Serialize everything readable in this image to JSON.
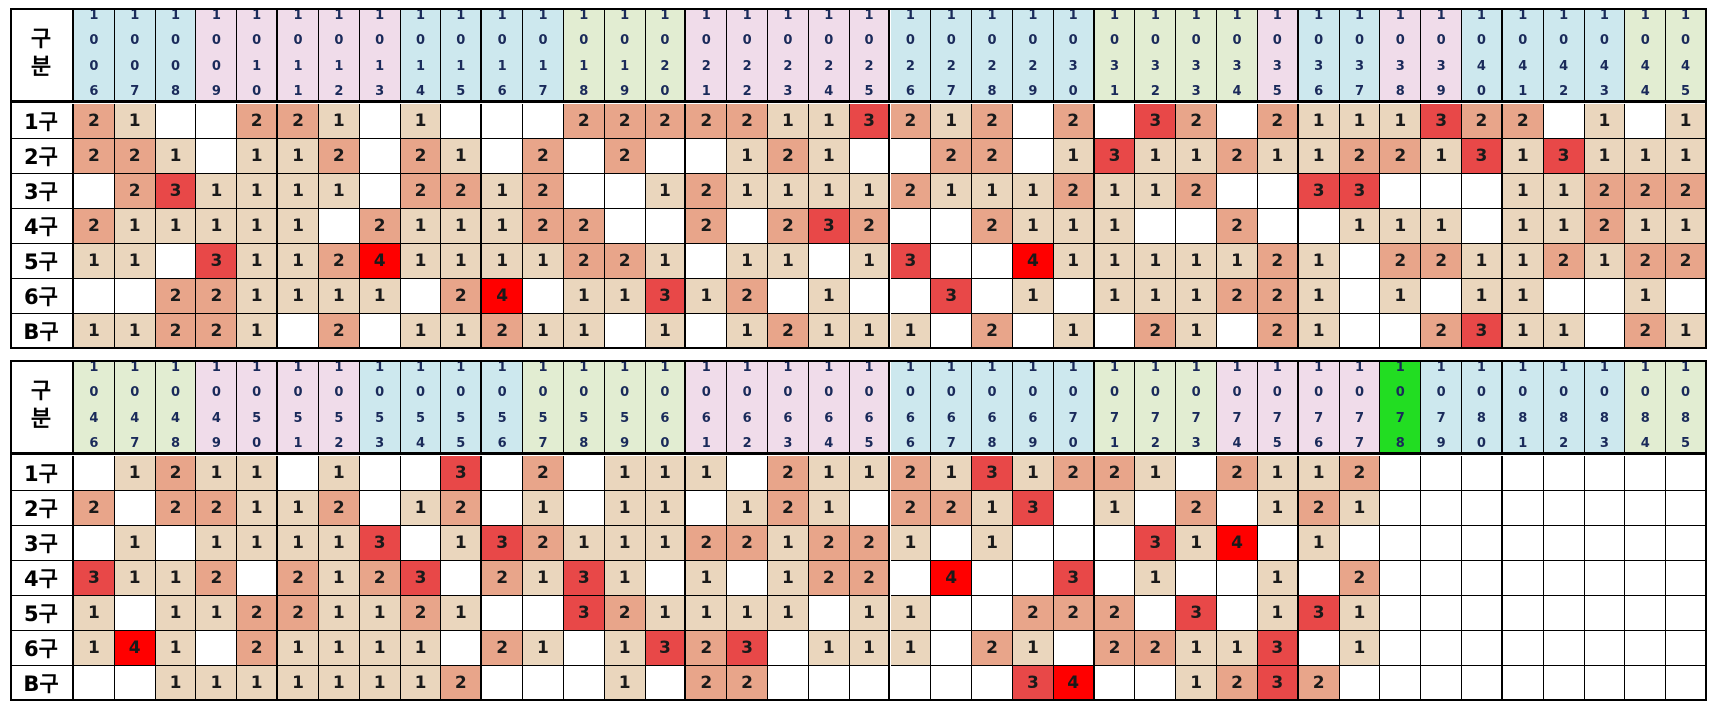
{
  "corner_label": "구\n분",
  "row_labels": [
    "1구",
    "2구",
    "3구",
    "4구",
    "5구",
    "6구",
    "B구"
  ],
  "colors": {
    "v1": "#ead6bd",
    "v2": "#e8a58a",
    "v3": "#e84848",
    "v4": "#ff0000",
    "blank": "#ffffff",
    "header_blue": "#cde8ee",
    "header_pink": "#f0dcea",
    "header_green": "#e2edd2",
    "header_highlight": "#22dd22"
  },
  "blocks": [
    {
      "headers": [
        {
          "digits": "1006",
          "color": "header_blue"
        },
        {
          "digits": "1007",
          "color": "header_blue"
        },
        {
          "digits": "1008",
          "color": "header_blue"
        },
        {
          "digits": "1009",
          "color": "header_pink"
        },
        {
          "digits": "1010",
          "color": "header_pink"
        },
        {
          "digits": "1011",
          "color": "header_pink"
        },
        {
          "digits": "1012",
          "color": "header_pink"
        },
        {
          "digits": "1013",
          "color": "header_pink"
        },
        {
          "digits": "1014",
          "color": "header_blue"
        },
        {
          "digits": "1015",
          "color": "header_blue"
        },
        {
          "digits": "1016",
          "color": "header_blue"
        },
        {
          "digits": "1017",
          "color": "header_blue"
        },
        {
          "digits": "1018",
          "color": "header_green"
        },
        {
          "digits": "1019",
          "color": "header_green"
        },
        {
          "digits": "1020",
          "color": "header_green"
        },
        {
          "digits": "1021",
          "color": "header_pink"
        },
        {
          "digits": "1022",
          "color": "header_pink"
        },
        {
          "digits": "1023",
          "color": "header_pink"
        },
        {
          "digits": "1024",
          "color": "header_pink"
        },
        {
          "digits": "1025",
          "color": "header_pink"
        },
        {
          "digits": "1026",
          "color": "header_blue"
        },
        {
          "digits": "1027",
          "color": "header_blue"
        },
        {
          "digits": "1028",
          "color": "header_blue"
        },
        {
          "digits": "1029",
          "color": "header_blue"
        },
        {
          "digits": "1030",
          "color": "header_blue"
        },
        {
          "digits": "1031",
          "color": "header_green"
        },
        {
          "digits": "1032",
          "color": "header_green"
        },
        {
          "digits": "1033",
          "color": "header_green"
        },
        {
          "digits": "1034",
          "color": "header_green"
        },
        {
          "digits": "1035",
          "color": "header_pink"
        },
        {
          "digits": "1036",
          "color": "header_blue"
        },
        {
          "digits": "1037",
          "color": "header_blue"
        },
        {
          "digits": "1038",
          "color": "header_pink"
        },
        {
          "digits": "1039",
          "color": "header_pink"
        },
        {
          "digits": "1040",
          "color": "header_blue"
        },
        {
          "digits": "1041",
          "color": "header_blue"
        },
        {
          "digits": "1042",
          "color": "header_blue"
        },
        {
          "digits": "1043",
          "color": "header_blue"
        },
        {
          "digits": "1044",
          "color": "header_green"
        },
        {
          "digits": "1045",
          "color": "header_green"
        }
      ],
      "rows": [
        [
          "2",
          "1",
          "",
          "",
          "2",
          "2",
          "1",
          "",
          "1",
          "",
          "",
          "",
          "2",
          "2",
          "2",
          "2",
          "2",
          "1",
          "1",
          "3",
          "2",
          "1",
          "2",
          "",
          "2",
          "",
          "3",
          "2",
          "",
          "2",
          "1",
          "1",
          "1",
          "3",
          "2",
          "2",
          "",
          "1",
          "",
          "1"
        ],
        [
          "2",
          "2",
          "1",
          "",
          "1",
          "1",
          "2",
          "",
          "2",
          "1",
          "",
          "2",
          "",
          "2",
          "",
          "",
          "1",
          "2",
          "1",
          "",
          "",
          "2",
          "2",
          "",
          "1",
          "3",
          "1",
          "1",
          "2",
          "1",
          "1",
          "2",
          "2",
          "1",
          "3",
          "1",
          "3",
          "1",
          "1",
          "1"
        ],
        [
          "",
          "2",
          "3",
          "1",
          "1",
          "1",
          "1",
          "",
          "2",
          "2",
          "1",
          "2",
          "",
          "",
          "1",
          "2",
          "1",
          "1",
          "1",
          "1",
          "2",
          "1",
          "1",
          "1",
          "2",
          "1",
          "1",
          "2",
          "",
          "",
          "3",
          "3",
          "",
          "",
          "",
          "1",
          "1",
          "2",
          "2",
          "2"
        ],
        [
          "2",
          "1",
          "1",
          "1",
          "1",
          "1",
          "",
          "2",
          "1",
          "1",
          "1",
          "2",
          "2",
          "",
          "",
          "2",
          "",
          "2",
          "3",
          "2",
          "",
          "",
          "2",
          "1",
          "1",
          "1",
          "",
          "",
          "2",
          "",
          "",
          "1",
          "1",
          "1",
          "",
          "1",
          "1",
          "2",
          "1",
          "1"
        ],
        [
          "1",
          "1",
          "",
          "3",
          "1",
          "1",
          "2",
          "4",
          "1",
          "1",
          "1",
          "1",
          "2",
          "2",
          "1",
          "",
          "1",
          "1",
          "",
          "1",
          "3",
          "",
          "",
          "4",
          "1",
          "1",
          "1",
          "1",
          "1",
          "2",
          "1",
          "",
          "2",
          "2",
          "1",
          "1",
          "2",
          "1",
          "2",
          "2"
        ],
        [
          "",
          "",
          "2",
          "2",
          "1",
          "1",
          "1",
          "1",
          "",
          "2",
          "4",
          "",
          "1",
          "1",
          "3",
          "1",
          "2",
          "",
          "1",
          "",
          "",
          "3",
          "",
          "1",
          "",
          "1",
          "1",
          "1",
          "2",
          "2",
          "1",
          "",
          "1",
          "",
          "1",
          "1",
          "",
          "",
          "1",
          ""
        ],
        [
          "1",
          "1",
          "2",
          "2",
          "1",
          "",
          "2",
          "",
          "1",
          "1",
          "2",
          "1",
          "1",
          "",
          "1",
          "",
          "1",
          "2",
          "1",
          "1",
          "1",
          "",
          "2",
          "",
          "1",
          "",
          "2",
          "1",
          "",
          "2",
          "1",
          "",
          "",
          "2",
          "3",
          "1",
          "1",
          "",
          "2",
          "1"
        ]
      ]
    },
    {
      "headers": [
        {
          "digits": "1046",
          "color": "header_green"
        },
        {
          "digits": "1047",
          "color": "header_green"
        },
        {
          "digits": "1048",
          "color": "header_green"
        },
        {
          "digits": "1049",
          "color": "header_pink"
        },
        {
          "digits": "1050",
          "color": "header_pink"
        },
        {
          "digits": "1051",
          "color": "header_pink"
        },
        {
          "digits": "1052",
          "color": "header_pink"
        },
        {
          "digits": "1053",
          "color": "header_blue"
        },
        {
          "digits": "1054",
          "color": "header_blue"
        },
        {
          "digits": "1055",
          "color": "header_blue"
        },
        {
          "digits": "1056",
          "color": "header_blue"
        },
        {
          "digits": "1057",
          "color": "header_green"
        },
        {
          "digits": "1058",
          "color": "header_green"
        },
        {
          "digits": "1059",
          "color": "header_green"
        },
        {
          "digits": "1060",
          "color": "header_green"
        },
        {
          "digits": "1061",
          "color": "header_pink"
        },
        {
          "digits": "1062",
          "color": "header_pink"
        },
        {
          "digits": "1063",
          "color": "header_pink"
        },
        {
          "digits": "1064",
          "color": "header_pink"
        },
        {
          "digits": "1065",
          "color": "header_pink"
        },
        {
          "digits": "1066",
          "color": "header_blue"
        },
        {
          "digits": "1067",
          "color": "header_blue"
        },
        {
          "digits": "1068",
          "color": "header_blue"
        },
        {
          "digits": "1069",
          "color": "header_blue"
        },
        {
          "digits": "1070",
          "color": "header_blue"
        },
        {
          "digits": "1071",
          "color": "header_green"
        },
        {
          "digits": "1072",
          "color": "header_green"
        },
        {
          "digits": "1073",
          "color": "header_green"
        },
        {
          "digits": "1074",
          "color": "header_pink"
        },
        {
          "digits": "1075",
          "color": "header_pink"
        },
        {
          "digits": "1076",
          "color": "header_pink"
        },
        {
          "digits": "1077",
          "color": "header_pink"
        },
        {
          "digits": "1078",
          "color": "header_highlight"
        },
        {
          "digits": "1079",
          "color": "header_blue"
        },
        {
          "digits": "1080",
          "color": "header_blue"
        },
        {
          "digits": "1081",
          "color": "header_blue"
        },
        {
          "digits": "1082",
          "color": "header_blue"
        },
        {
          "digits": "1083",
          "color": "header_blue"
        },
        {
          "digits": "1084",
          "color": "header_green"
        },
        {
          "digits": "1085",
          "color": "header_green"
        }
      ],
      "rows": [
        [
          "",
          "1",
          "2",
          "1",
          "1",
          "",
          "1",
          "",
          "",
          "3",
          "",
          "2",
          "",
          "1",
          "1",
          "1",
          "",
          "2",
          "1",
          "1",
          "2",
          "1",
          "3",
          "1",
          "2",
          "2",
          "1",
          "",
          "2",
          "1",
          "1",
          "2",
          "",
          "",
          "",
          "",
          "",
          "",
          "",
          ""
        ],
        [
          "2",
          "",
          "2",
          "2",
          "1",
          "1",
          "2",
          "",
          "1",
          "2",
          "",
          "1",
          "",
          "1",
          "1",
          "",
          "1",
          "2",
          "1",
          "",
          "2",
          "2",
          "1",
          "3",
          "",
          "1",
          "",
          "2",
          "",
          "1",
          "2",
          "1",
          "",
          "",
          "",
          "",
          "",
          "",
          "",
          ""
        ],
        [
          "",
          "1",
          "",
          "1",
          "1",
          "1",
          "1",
          "3",
          "",
          "1",
          "3",
          "2",
          "1",
          "1",
          "1",
          "2",
          "2",
          "1",
          "2",
          "2",
          "1",
          "",
          "1",
          "",
          "",
          "",
          "3",
          "1",
          "4",
          "",
          "1",
          "",
          "",
          "",
          "",
          "",
          "",
          "",
          "",
          ""
        ],
        [
          "3",
          "1",
          "1",
          "2",
          "",
          "2",
          "1",
          "2",
          "3",
          "",
          "2",
          "1",
          "3",
          "1",
          "",
          "1",
          "",
          "1",
          "2",
          "2",
          "",
          "4",
          "",
          "",
          "3",
          "",
          "1",
          "",
          "",
          "1",
          "",
          "2",
          "",
          "",
          "",
          "",
          "",
          "",
          "",
          ""
        ],
        [
          "1",
          "",
          "1",
          "1",
          "2",
          "2",
          "1",
          "1",
          "2",
          "1",
          "",
          "",
          "3",
          "2",
          "1",
          "1",
          "1",
          "1",
          "",
          "1",
          "1",
          "",
          "",
          "2",
          "2",
          "2",
          "",
          "3",
          "",
          "1",
          "3",
          "1",
          "",
          "",
          "",
          "",
          "",
          "",
          "",
          ""
        ],
        [
          "1",
          "4",
          "1",
          "",
          "2",
          "1",
          "1",
          "1",
          "1",
          "",
          "2",
          "1",
          "",
          "1",
          "3",
          "2",
          "3",
          "",
          "1",
          "1",
          "1",
          "",
          "2",
          "1",
          "",
          "2",
          "2",
          "1",
          "1",
          "3",
          "",
          "1",
          "",
          "",
          "",
          "",
          "",
          "",
          "",
          ""
        ],
        [
          "",
          "",
          "1",
          "1",
          "1",
          "1",
          "1",
          "1",
          "1",
          "2",
          "",
          "",
          "",
          "1",
          "",
          "2",
          "2",
          "",
          "",
          "",
          "",
          "",
          "",
          "3",
          "4",
          "",
          "",
          "1",
          "2",
          "3",
          "2",
          "",
          "",
          "",
          "",
          "",
          "",
          "",
          "",
          ""
        ]
      ]
    }
  ]
}
